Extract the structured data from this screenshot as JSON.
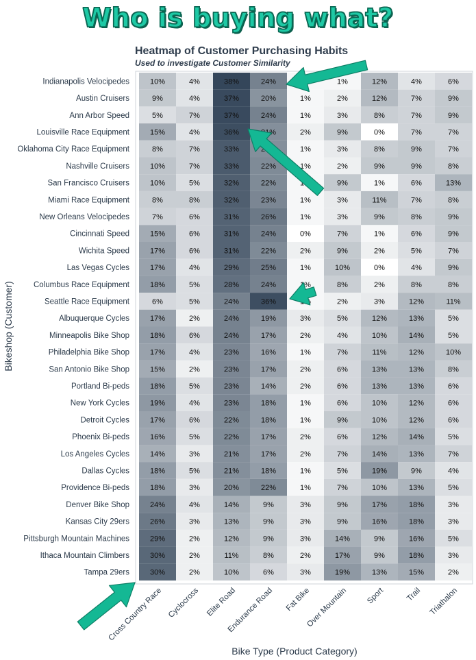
{
  "banner": "Who is buying what?",
  "colors": {
    "banner": "#1ec9a5",
    "arrow": "#14b894",
    "dark": "#34465a"
  },
  "chart_data": {
    "type": "heatmap",
    "title": "Heatmap of Customer Purchasing Habits",
    "subtitle": "Used to investigate Customer Similarity",
    "xlabel": "Bike Type (Product Category)",
    "ylabel": "Bikeshop (Customer)",
    "columns": [
      "Cross Country Race",
      "Cyclocross",
      "Elite Road",
      "Endurance Road",
      "Fat Bike",
      "Over Mountain",
      "Sport",
      "Trail",
      "Triathalon"
    ],
    "rows": [
      "Indianapolis Velocipedes",
      "Austin Cruisers",
      "Ann Arbor Speed",
      "Louisville Race Equipment",
      "Oklahoma City Race Equipment",
      "Nashville Cruisers",
      "San Francisco Cruisers",
      "Miami Race Equipment",
      "New Orleans Velocipedes",
      "Cincinnati Speed",
      "Wichita Speed",
      "Las Vegas Cycles",
      "Columbus Race Equipment",
      "Seattle Race Equipment",
      "Albuquerque Cycles",
      "Minneapolis Bike Shop",
      "Philadelphia Bike Shop",
      "San Antonio Bike Shop",
      "Portland Bi-peds",
      "New York Cycles",
      "Detroit Cycles",
      "Phoenix Bi-peds",
      "Los Angeles Cycles",
      "Dallas Cycles",
      "Providence Bi-peds",
      "Denver Bike Shop",
      "Kansas City 29ers",
      "Pittsburgh Mountain Machines",
      "Ithaca Mountain Climbers",
      "Tampa 29ers"
    ],
    "values": [
      [
        10,
        4,
        38,
        24,
        1,
        1,
        12,
        4,
        6
      ],
      [
        9,
        4,
        37,
        20,
        1,
        2,
        12,
        7,
        9
      ],
      [
        5,
        7,
        37,
        24,
        1,
        3,
        8,
        7,
        9
      ],
      [
        15,
        4,
        36,
        21,
        2,
        9,
        0,
        7,
        7
      ],
      [
        8,
        7,
        33,
        21,
        1,
        3,
        8,
        9,
        7
      ],
      [
        10,
        7,
        33,
        22,
        1,
        2,
        9,
        9,
        8
      ],
      [
        10,
        5,
        32,
        22,
        1,
        9,
        1,
        6,
        13
      ],
      [
        8,
        8,
        32,
        23,
        1,
        3,
        11,
        7,
        8
      ],
      [
        7,
        6,
        31,
        26,
        1,
        3,
        9,
        8,
        9
      ],
      [
        15,
        6,
        31,
        24,
        0,
        7,
        1,
        6,
        9
      ],
      [
        17,
        6,
        31,
        22,
        2,
        9,
        2,
        5,
        7
      ],
      [
        17,
        4,
        29,
        25,
        1,
        10,
        0,
        4,
        9
      ],
      [
        18,
        5,
        28,
        24,
        1,
        8,
        2,
        8,
        8
      ],
      [
        6,
        5,
        24,
        36,
        1,
        2,
        3,
        12,
        11
      ],
      [
        17,
        2,
        24,
        19,
        3,
        5,
        12,
        13,
        5
      ],
      [
        18,
        6,
        24,
        17,
        2,
        4,
        10,
        14,
        5
      ],
      [
        17,
        4,
        23,
        16,
        1,
        7,
        11,
        12,
        10
      ],
      [
        15,
        2,
        23,
        17,
        2,
        6,
        13,
        13,
        8
      ],
      [
        18,
        5,
        23,
        14,
        2,
        6,
        13,
        13,
        6
      ],
      [
        19,
        4,
        23,
        18,
        1,
        6,
        10,
        12,
        6
      ],
      [
        17,
        6,
        22,
        18,
        1,
        9,
        10,
        12,
        6
      ],
      [
        16,
        5,
        22,
        17,
        2,
        6,
        12,
        14,
        5
      ],
      [
        14,
        3,
        21,
        17,
        2,
        7,
        14,
        13,
        7
      ],
      [
        18,
        5,
        21,
        18,
        1,
        5,
        19,
        9,
        4
      ],
      [
        18,
        3,
        20,
        22,
        1,
        7,
        10,
        13,
        5
      ],
      [
        24,
        4,
        14,
        9,
        3,
        9,
        17,
        18,
        3
      ],
      [
        26,
        3,
        13,
        9,
        3,
        9,
        16,
        18,
        3
      ],
      [
        29,
        2,
        12,
        9,
        3,
        14,
        9,
        16,
        5
      ],
      [
        30,
        2,
        11,
        8,
        2,
        17,
        9,
        18,
        3
      ],
      [
        30,
        2,
        10,
        6,
        3,
        19,
        13,
        15,
        2
      ]
    ],
    "value_suffix": "%",
    "color_scale": {
      "low": "#ffffff",
      "high": "#34465a"
    },
    "legend": "none"
  }
}
